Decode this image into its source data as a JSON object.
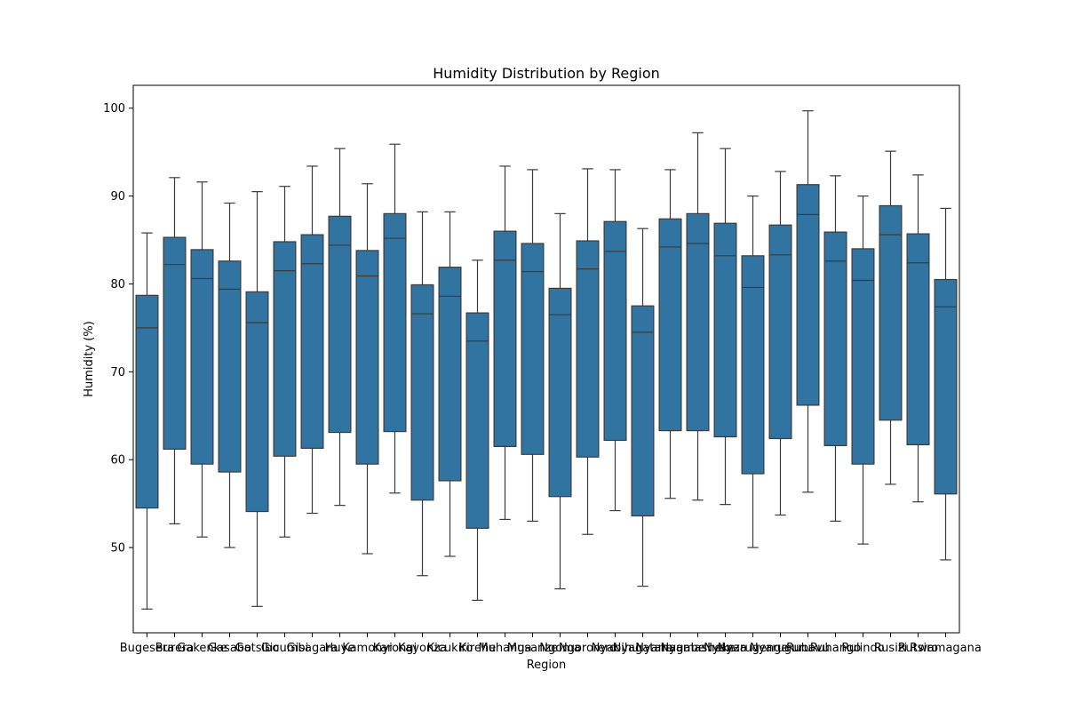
{
  "chart_data": {
    "type": "box",
    "title": "Humidity Distribution by Region",
    "xlabel": "Region",
    "ylabel": "Humidity (%)",
    "ylim": [
      40.3,
      102.6
    ],
    "yticks": [
      50,
      60,
      70,
      80,
      90,
      100
    ],
    "grid": false,
    "box_color": "#3274a1",
    "line_color": "#3b3b3b",
    "categories": [
      "Bugesera",
      "Burera",
      "Gakenke",
      "Gasabo",
      "Gatsibo",
      "Gicumbi",
      "Gisagara",
      "Huye",
      "Kamonyi",
      "Karongi",
      "Kayonza",
      "Kicukiro",
      "Kirehe",
      "Muhanga",
      "Musanze",
      "Ngoma",
      "Ngororero",
      "Nyabihu",
      "Nyagatare",
      "Nyamagabe",
      "Nyamasheke",
      "Nyanza",
      "Nyarugenge",
      "Nyaruguru",
      "Rubavu",
      "Ruhango",
      "Rulindo",
      "Rusizi",
      "Rutsiro",
      "Rwamagana"
    ],
    "boxes": [
      {
        "whislo": 43.0,
        "q1": 54.5,
        "med": 75.0,
        "q3": 78.7,
        "whishi": 85.8
      },
      {
        "whislo": 52.7,
        "q1": 61.2,
        "med": 82.2,
        "q3": 85.3,
        "whishi": 92.1
      },
      {
        "whislo": 51.2,
        "q1": 59.5,
        "med": 80.6,
        "q3": 83.9,
        "whishi": 91.6
      },
      {
        "whislo": 50.0,
        "q1": 58.6,
        "med": 79.4,
        "q3": 82.6,
        "whishi": 89.2
      },
      {
        "whislo": 43.3,
        "q1": 54.1,
        "med": 75.6,
        "q3": 79.1,
        "whishi": 90.5
      },
      {
        "whislo": 51.2,
        "q1": 60.4,
        "med": 81.5,
        "q3": 84.8,
        "whishi": 91.1
      },
      {
        "whislo": 53.9,
        "q1": 61.3,
        "med": 82.3,
        "q3": 85.6,
        "whishi": 93.4
      },
      {
        "whislo": 54.8,
        "q1": 63.1,
        "med": 84.4,
        "q3": 87.7,
        "whishi": 95.4
      },
      {
        "whislo": 49.3,
        "q1": 59.5,
        "med": 80.9,
        "q3": 83.8,
        "whishi": 91.4
      },
      {
        "whislo": 56.2,
        "q1": 63.2,
        "med": 85.2,
        "q3": 88.0,
        "whishi": 95.9
      },
      {
        "whislo": 46.8,
        "q1": 55.4,
        "med": 76.6,
        "q3": 79.9,
        "whishi": 88.2
      },
      {
        "whislo": 49.0,
        "q1": 57.6,
        "med": 78.6,
        "q3": 81.9,
        "whishi": 88.2
      },
      {
        "whislo": 44.0,
        "q1": 52.2,
        "med": 73.5,
        "q3": 76.7,
        "whishi": 82.7
      },
      {
        "whislo": 53.2,
        "q1": 61.5,
        "med": 82.7,
        "q3": 86.0,
        "whishi": 93.4
      },
      {
        "whislo": 53.0,
        "q1": 60.6,
        "med": 81.4,
        "q3": 84.6,
        "whishi": 93.0
      },
      {
        "whislo": 45.3,
        "q1": 55.8,
        "med": 76.5,
        "q3": 79.5,
        "whishi": 88.0
      },
      {
        "whislo": 51.5,
        "q1": 60.3,
        "med": 81.7,
        "q3": 84.9,
        "whishi": 93.1
      },
      {
        "whislo": 54.2,
        "q1": 62.2,
        "med": 83.7,
        "q3": 87.1,
        "whishi": 93.0
      },
      {
        "whislo": 45.6,
        "q1": 53.6,
        "med": 74.5,
        "q3": 77.5,
        "whishi": 86.3
      },
      {
        "whislo": 55.6,
        "q1": 63.3,
        "med": 84.2,
        "q3": 87.4,
        "whishi": 93.0
      },
      {
        "whislo": 55.4,
        "q1": 63.3,
        "med": 84.6,
        "q3": 88.0,
        "whishi": 97.2
      },
      {
        "whislo": 54.9,
        "q1": 62.6,
        "med": 83.2,
        "q3": 86.9,
        "whishi": 95.4
      },
      {
        "whislo": 50.0,
        "q1": 58.4,
        "med": 79.6,
        "q3": 83.2,
        "whishi": 90.0
      },
      {
        "whislo": 53.7,
        "q1": 62.4,
        "med": 83.3,
        "q3": 86.7,
        "whishi": 92.8
      },
      {
        "whislo": 56.3,
        "q1": 66.2,
        "med": 87.9,
        "q3": 91.3,
        "whishi": 99.7
      },
      {
        "whislo": 53.0,
        "q1": 61.6,
        "med": 82.6,
        "q3": 85.9,
        "whishi": 92.3
      },
      {
        "whislo": 50.4,
        "q1": 59.5,
        "med": 80.4,
        "q3": 84.0,
        "whishi": 90.0
      },
      {
        "whislo": 57.2,
        "q1": 64.5,
        "med": 85.6,
        "q3": 88.9,
        "whishi": 95.1
      },
      {
        "whislo": 55.2,
        "q1": 61.7,
        "med": 82.4,
        "q3": 85.7,
        "whishi": 92.4
      },
      {
        "whislo": 48.6,
        "q1": 56.1,
        "med": 77.4,
        "q3": 80.5,
        "whishi": 88.6
      }
    ]
  }
}
